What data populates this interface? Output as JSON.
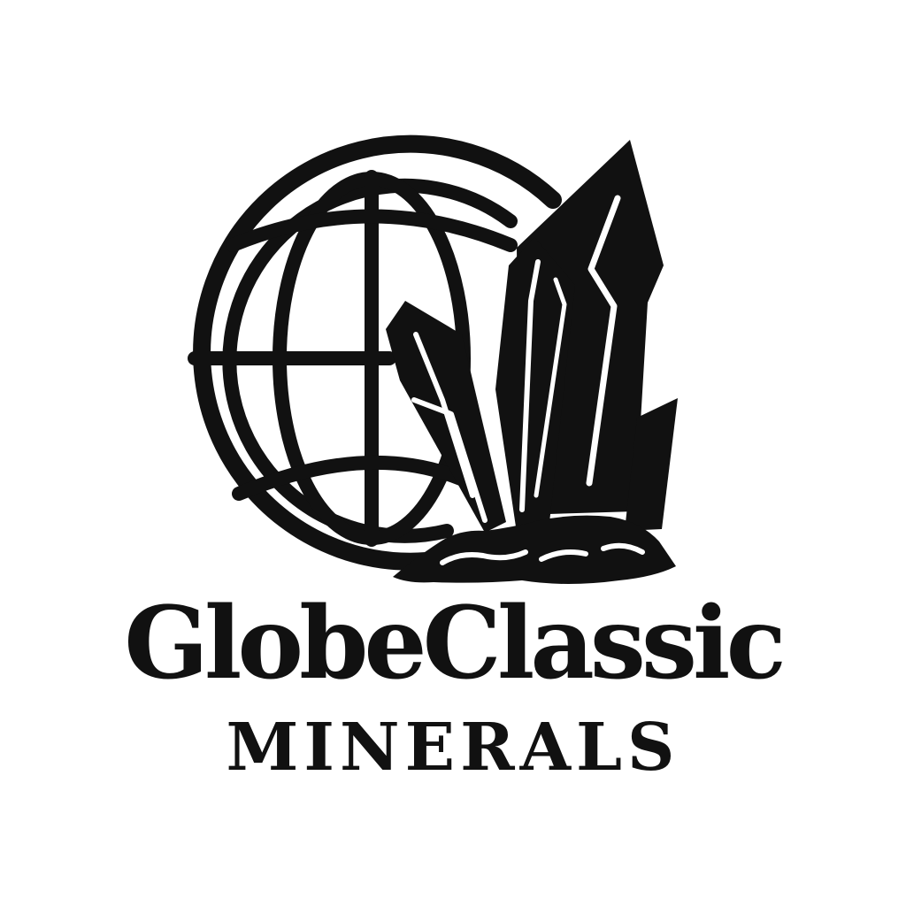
{
  "logo": {
    "brand_name": "GlobeClassic",
    "subtitle": "MINERALS",
    "icons": [
      "globe-icon",
      "crystal-cluster-icon",
      "rock-base-icon"
    ],
    "colors": {
      "ink": "#111111",
      "background": "#ffffff"
    }
  }
}
